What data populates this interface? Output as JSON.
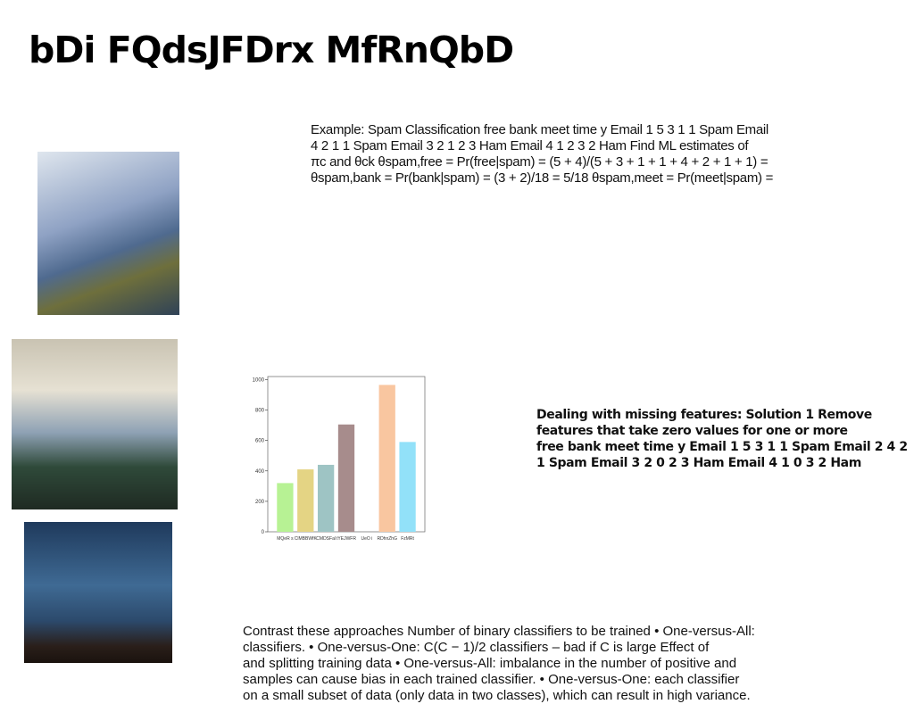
{
  "title": "bDi FQdsJFDrx MfRnQbD",
  "example": {
    "lines": [
      "Example: Spam Classification free bank meet time y Email 1 5 3 1 1 Spam Email",
      "4 2 1 1 Spam Email 3 2 1 2 3 Ham Email 4 1 2 3 2 Ham Find ML estimates of",
      "πc and θck θspam,free = Pr(free|spam) = (5 + 4)/(5 + 3 + 1 + 1 + 4 + 2 + 1 + 1) =",
      "θspam,bank = Pr(bank|spam) = (3 + 2)/18 = 5/18 θspam,meet = Pr(meet|spam) ="
    ]
  },
  "missing": {
    "lines": [
      "Dealing with missing features: Solution 1 Remove",
      "features that take zero values for one or more",
      "free bank meet time y Email 1 5 3 1 1 Spam Email 2 4 2",
      "1 Spam Email 3 2 0 2 3 Ham Email 4 1 0 3 2 Ham"
    ]
  },
  "contrast": {
    "lines": [
      "Contrast these approaches Number of binary classifiers to be trained • One-versus-All:",
      "classifiers. • One-versus-One: C(C − 1)/2 classifiers – bad if C is large Effect of",
      "and splitting training data • One-versus-All: imbalance in the number of positive and",
      "samples can cause bias in each trained classifier. • One-versus-One: each classifier",
      "on a small subset of data (only data in two classes), which can result in high variance."
    ]
  },
  "chart": {
    "type": "bar",
    "categories": [
      "MQeR s",
      "ClMBBWfK",
      "CMDSFal",
      "tYEJWFR",
      "UeO i",
      "RDhnZhG",
      "FzMRt"
    ],
    "values": [
      320,
      410,
      440,
      705,
      0,
      965,
      590
    ],
    "colors": [
      "#b7f294",
      "#e4d484",
      "#9ec4c4",
      "#a78c8c",
      "#cccccc",
      "#f9c6a0",
      "#92e1f9"
    ],
    "ylim": [
      0,
      1020
    ],
    "yticks": [
      0,
      200,
      400,
      600,
      800,
      1000
    ]
  }
}
